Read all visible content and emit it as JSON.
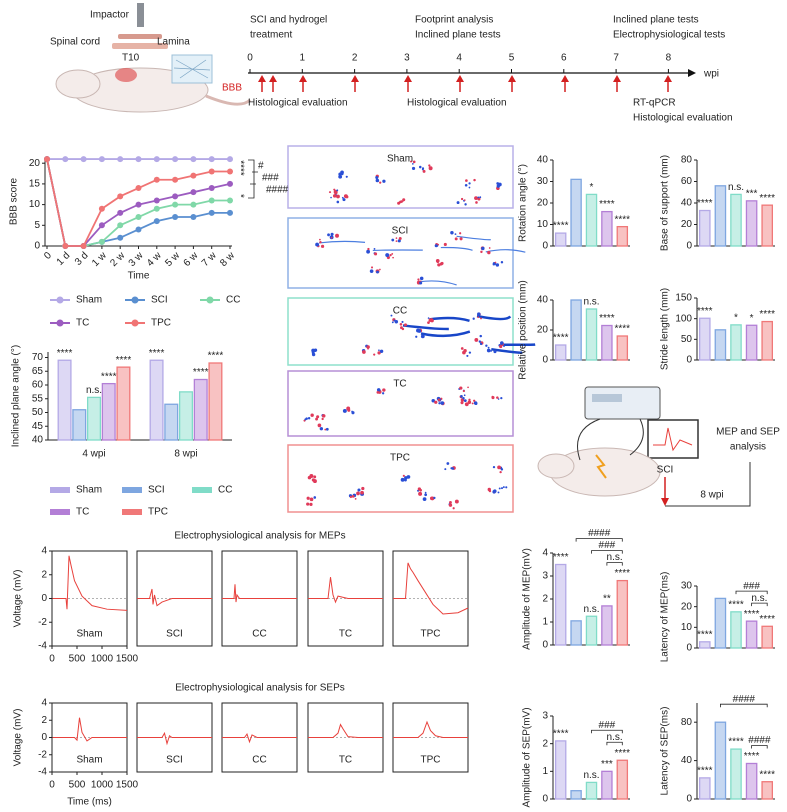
{
  "figure_model": {
    "labels": [
      "Impactor",
      "Lamina",
      "Spinal cord",
      "T10"
    ],
    "score": "BBB"
  },
  "timeline": {
    "ticks": [
      0,
      1,
      2,
      3,
      4,
      5,
      6,
      7,
      8
    ],
    "unit": "wpi",
    "above": [
      [
        "SCI and hydrogel",
        "treatment"
      ],
      [
        "Footprint analysis",
        "Inclined plane tests"
      ],
      [
        "Inclined plane tests",
        "Electrophysiological tests"
      ]
    ],
    "below": [
      [
        "Histological evaluation"
      ],
      [
        "Histological evaluation"
      ],
      [
        "RT-qPCR",
        "Histological evaluation"
      ]
    ]
  },
  "footprints": {
    "panels": [
      {
        "label": "Sham",
        "color": "#b9b0e8"
      },
      {
        "label": "SCI",
        "color": "#8fb0e6"
      },
      {
        "label": "CC",
        "color": "#8ee0cc"
      },
      {
        "label": "TC",
        "color": "#b58fd6"
      },
      {
        "label": "TPC",
        "color": "#f09090"
      }
    ]
  },
  "schematic": {
    "injury": "SCI",
    "time": "8 wpi",
    "analysis": [
      "MEP and SEP",
      "analysis"
    ]
  },
  "chart_data": [
    {
      "type": "line",
      "xlabel": "Time",
      "ylabel": "BBB score",
      "categories": [
        "0",
        "1 d",
        "3 d",
        "1 w",
        "2 w",
        "3 w",
        "4 w",
        "5 w",
        "6 w",
        "7 w",
        "8 w"
      ],
      "ylim": [
        0,
        21.5
      ],
      "yticks": [
        0,
        5,
        10,
        15,
        20
      ],
      "series": [
        {
          "name": "Sham",
          "color": "#b4a9e6",
          "values": [
            21,
            21,
            21,
            21,
            21,
            21,
            21,
            21,
            21,
            21,
            21
          ]
        },
        {
          "name": "SCI",
          "color": "#5a8fd0",
          "values": [
            21,
            0,
            0,
            1,
            2,
            4,
            6,
            7,
            7,
            8,
            8
          ]
        },
        {
          "name": "CC",
          "color": "#80d8a8",
          "values": [
            21,
            0,
            0,
            1,
            5,
            7,
            9,
            10,
            10,
            11,
            11
          ]
        },
        {
          "name": "TC",
          "color": "#9c5cc0",
          "values": [
            21,
            0,
            0,
            5,
            8,
            10,
            11,
            12,
            13,
            14,
            15
          ]
        },
        {
          "name": "TPC",
          "color": "#f07474",
          "values": [
            21,
            0,
            0,
            9,
            12,
            14,
            16,
            16,
            17,
            18,
            18
          ]
        }
      ],
      "annotations": [
        "****",
        "*",
        "#",
        "###",
        "####"
      ]
    },
    {
      "type": "bar",
      "ylabel": "Inclined plane angle (°)",
      "categories": [
        "4 wpi",
        "8 wpi"
      ],
      "ylim": [
        40,
        72
      ],
      "yticks": [
        40,
        45,
        50,
        55,
        60,
        65,
        70
      ],
      "series": [
        {
          "name": "Sham",
          "color": "#b4a9e6",
          "values": [
            69,
            69
          ],
          "significance": [
            "****",
            "****"
          ]
        },
        {
          "name": "SCI",
          "color": "#7ea6e0",
          "values": [
            51,
            53
          ],
          "significance": [
            null,
            null
          ]
        },
        {
          "name": "CC",
          "color": "#80dcc8",
          "values": [
            55.5,
            57.5
          ],
          "significance": [
            "n.s.",
            null
          ]
        },
        {
          "name": "TC",
          "color": "#b37fd6",
          "values": [
            60.5,
            62
          ],
          "significance": [
            "****",
            "****"
          ]
        },
        {
          "name": "TPC",
          "color": "#f07878",
          "values": [
            66.5,
            68
          ],
          "significance": [
            "****",
            "****"
          ]
        }
      ]
    },
    {
      "type": "bar",
      "ylabel": "Rotation angle (°)",
      "categories": [
        "Sham",
        "SCI",
        "CC",
        "TC",
        "TPC"
      ],
      "colors": [
        "#b4a9e6",
        "#7ea6e0",
        "#80dcc8",
        "#b37fd6",
        "#f07878"
      ],
      "values": [
        6,
        31,
        24,
        16,
        9
      ],
      "significance": [
        "****",
        null,
        "*",
        "****",
        "****"
      ],
      "ylim": [
        0,
        40
      ],
      "yticks": [
        0,
        10,
        20,
        30,
        40
      ]
    },
    {
      "type": "bar",
      "ylabel": "Base of support (mm)",
      "categories": [
        "Sham",
        "SCI",
        "CC",
        "TC",
        "TPC"
      ],
      "colors": [
        "#b4a9e6",
        "#7ea6e0",
        "#80dcc8",
        "#b37fd6",
        "#f07878"
      ],
      "values": [
        33,
        56,
        48,
        42,
        38
      ],
      "significance": [
        "****",
        null,
        "n.s.",
        "***",
        "****"
      ],
      "ylim": [
        0,
        80
      ],
      "yticks": [
        0,
        20,
        40,
        60,
        80
      ]
    },
    {
      "type": "bar",
      "ylabel": "Relative position (mm)",
      "categories": [
        "Sham",
        "SCI",
        "CC",
        "TC",
        "TPC"
      ],
      "colors": [
        "#b4a9e6",
        "#7ea6e0",
        "#80dcc8",
        "#b37fd6",
        "#f07878"
      ],
      "values": [
        10,
        40,
        34,
        23,
        16
      ],
      "significance": [
        "****",
        null,
        "n.s.",
        "****",
        "****"
      ],
      "ylim": [
        0,
        40
      ],
      "yticks": [
        0,
        20,
        40
      ]
    },
    {
      "type": "bar",
      "ylabel": "Stride length (mm)",
      "categories": [
        "Sham",
        "SCI",
        "CC",
        "TC",
        "TPC"
      ],
      "colors": [
        "#b4a9e6",
        "#7ea6e0",
        "#80dcc8",
        "#b37fd6",
        "#f07878"
      ],
      "values": [
        101,
        73,
        85,
        84,
        93
      ],
      "significance": [
        "****",
        null,
        "*",
        "*",
        "****"
      ],
      "ylim": [
        0,
        150
      ],
      "yticks": [
        0,
        50,
        100,
        150
      ]
    },
    {
      "type": "line",
      "small_multiples": true,
      "title": "Electrophysiological analysis for MEPs",
      "ylabel": "Voltage (mV)",
      "xlim": [
        0,
        1500
      ],
      "xticks": [
        0,
        500,
        1000,
        1500
      ],
      "ylim": [
        -4,
        4
      ],
      "yticks": [
        -4,
        -2,
        0,
        2,
        4
      ],
      "color": "#e8413c",
      "series": [
        {
          "name": "Sham",
          "x": [
            0,
            280,
            300,
            340,
            380,
            450,
            600,
            800,
            1100,
            1500
          ],
          "values": [
            0,
            0,
            -0.9,
            3.6,
            2.8,
            1.5,
            0.2,
            -0.6,
            -0.9,
            -1.0
          ]
        },
        {
          "name": "SCI",
          "x": [
            0,
            250,
            300,
            320,
            350,
            400,
            500,
            700,
            1000,
            1500
          ],
          "values": [
            0,
            0,
            0.8,
            -0.5,
            0.3,
            -0.6,
            -0.3,
            0,
            0,
            0
          ]
        },
        {
          "name": "CC",
          "x": [
            0,
            240,
            260,
            280,
            300,
            350,
            500,
            1500
          ],
          "values": [
            0,
            0,
            1.2,
            -0.3,
            0.3,
            0,
            0,
            0
          ]
        },
        {
          "name": "TC",
          "x": [
            0,
            400,
            450,
            500,
            550,
            600,
            800,
            1500
          ],
          "values": [
            0,
            0,
            1.8,
            0.3,
            -0.3,
            0.2,
            0,
            0
          ]
        },
        {
          "name": "TPC",
          "x": [
            0,
            250,
            300,
            350,
            400,
            500,
            800,
            1000,
            1300,
            1500
          ],
          "values": [
            0,
            0,
            3,
            2.5,
            2.2,
            1.5,
            -0.5,
            -1.3,
            -1.2,
            -0.8
          ]
        }
      ]
    },
    {
      "type": "line",
      "small_multiples": true,
      "title": "Electrophysiological analysis for SEPs",
      "ylabel": "Voltage (mV)",
      "xlabel": "Time (ms)",
      "xlim": [
        0,
        1500
      ],
      "xticks": [
        0,
        500,
        1000,
        1500
      ],
      "ylim": [
        -4,
        4
      ],
      "yticks": [
        -4,
        -2,
        0,
        2,
        4
      ],
      "color": "#e8413c",
      "series": [
        {
          "name": "Sham",
          "x": [
            0,
            450,
            500,
            550,
            600,
            700,
            800,
            1000,
            1500
          ],
          "values": [
            0,
            0,
            -0.3,
            2.3,
            0.6,
            -0.4,
            0,
            0,
            0
          ]
        },
        {
          "name": "SCI",
          "x": [
            0,
            500,
            550,
            600,
            650,
            700,
            1500
          ],
          "values": [
            0,
            0,
            0.5,
            -0.7,
            0.2,
            0,
            0
          ]
        },
        {
          "name": "CC",
          "x": [
            0,
            450,
            500,
            550,
            600,
            700,
            1500
          ],
          "values": [
            0,
            0,
            0.4,
            -0.5,
            0.3,
            0,
            0
          ]
        },
        {
          "name": "TC",
          "x": [
            0,
            500,
            600,
            650,
            700,
            800,
            1000,
            1500
          ],
          "values": [
            0,
            0,
            0.5,
            1.5,
            1,
            0.1,
            0,
            0
          ]
        },
        {
          "name": "TPC",
          "x": [
            0,
            500,
            600,
            680,
            750,
            850,
            1000,
            1500
          ],
          "values": [
            0,
            0,
            0.5,
            1.8,
            0.8,
            0.2,
            0,
            0
          ]
        }
      ]
    },
    {
      "type": "bar",
      "ylabel": "Amplitude of MEP(mV)",
      "categories": [
        "Sham",
        "SCI",
        "CC",
        "TC",
        "TPC"
      ],
      "colors": [
        "#b4a9e6",
        "#7ea6e0",
        "#80dcc8",
        "#b37fd6",
        "#f07878"
      ],
      "values": [
        3.5,
        1.05,
        1.25,
        1.7,
        2.8
      ],
      "significance": [
        "****",
        null,
        "n.s.",
        "**",
        "****"
      ],
      "brackets": [
        {
          "text": "####",
          "from": "SCI",
          "to": "TPC"
        },
        {
          "text": "###",
          "from": "CC",
          "to": "TPC"
        },
        {
          "text": "n.s.",
          "from": "TC",
          "to": "TPC"
        }
      ],
      "ylim": [
        0,
        4
      ],
      "yticks": [
        0,
        1,
        2,
        3,
        4
      ]
    },
    {
      "type": "bar",
      "ylabel": "Latency of MEP(ms)",
      "categories": [
        "Sham",
        "SCI",
        "CC",
        "TC",
        "TPC"
      ],
      "colors": [
        "#b4a9e6",
        "#7ea6e0",
        "#80dcc8",
        "#b37fd6",
        "#f07878"
      ],
      "values": [
        3,
        24,
        17.5,
        13,
        10.5
      ],
      "significance": [
        "****",
        null,
        "****",
        "****",
        "****"
      ],
      "brackets": [
        {
          "text": "###",
          "from": "CC",
          "to": "TPC"
        },
        {
          "text": "n.s.",
          "from": "TC",
          "to": "TPC"
        }
      ],
      "ylim": [
        0,
        30
      ],
      "yticks": [
        0,
        10,
        20,
        30
      ]
    },
    {
      "type": "bar",
      "ylabel": "Amplitude of SEP(mV)",
      "categories": [
        "Sham",
        "SCI",
        "CC",
        "TC",
        "TPC"
      ],
      "colors": [
        "#b4a9e6",
        "#7ea6e0",
        "#80dcc8",
        "#b37fd6",
        "#f07878"
      ],
      "values": [
        2.1,
        0.3,
        0.6,
        1.0,
        1.4
      ],
      "significance": [
        "****",
        null,
        "n.s.",
        "***",
        "****"
      ],
      "brackets": [
        {
          "text": "###",
          "from": "CC",
          "to": "TPC"
        },
        {
          "text": "n.s.",
          "from": "TC",
          "to": "TPC"
        }
      ],
      "ylim": [
        0,
        3
      ],
      "yticks": [
        0,
        1,
        2,
        3
      ]
    },
    {
      "type": "bar",
      "ylabel": "Latency of SEP(ms)",
      "categories": [
        "Sham",
        "SCI",
        "CC",
        "TC",
        "TPC"
      ],
      "colors": [
        "#b4a9e6",
        "#7ea6e0",
        "#80dcc8",
        "#b37fd6",
        "#f07878"
      ],
      "values": [
        22,
        80,
        52,
        37,
        18
      ],
      "significance": [
        "****",
        null,
        "****",
        "****",
        "****"
      ],
      "brackets": [
        {
          "text": "####",
          "from": "SCI",
          "to": "TPC"
        },
        {
          "text": "####",
          "from": "TC",
          "to": "TPC"
        }
      ],
      "ylim": [
        0,
        100
      ],
      "yticks": [
        0,
        40,
        80
      ]
    }
  ]
}
